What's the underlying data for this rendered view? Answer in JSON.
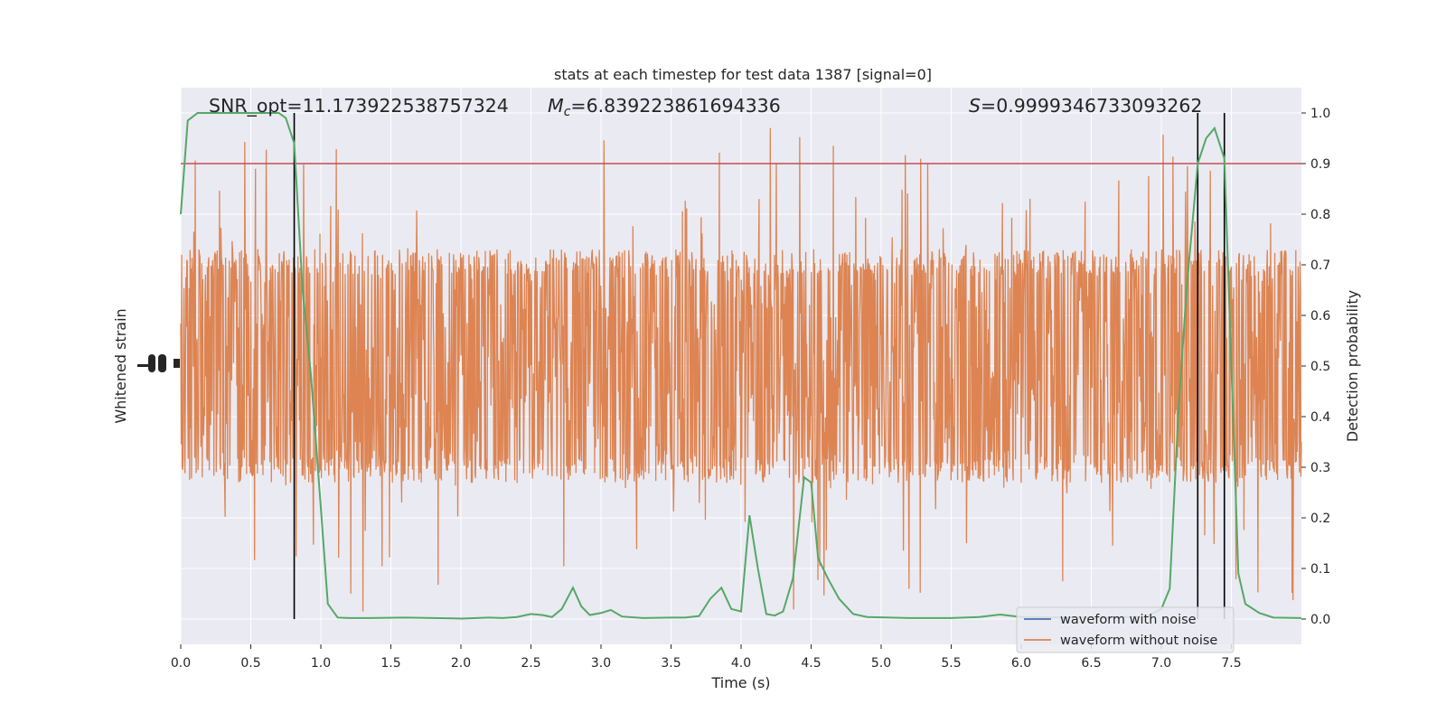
{
  "chart_data": {
    "type": "line",
    "title": "stats at each timestep for test data 1387 [signal=0]",
    "xlabel": "Time (s)",
    "ylabel_left": "Whitened strain",
    "ylabel_right": "Detection probability",
    "xlim": [
      0,
      8
    ],
    "ylim_right": [
      -0.05,
      1.05
    ],
    "x_ticks": [
      "0.0",
      "0.5",
      "1.0",
      "1.5",
      "2.0",
      "2.5",
      "3.0",
      "3.5",
      "4.0",
      "4.5",
      "5.0",
      "5.5",
      "6.0",
      "6.5",
      "7.0",
      "7.5"
    ],
    "y_right_ticks": [
      "0.0",
      "0.1",
      "0.2",
      "0.3",
      "0.4",
      "0.5",
      "0.6",
      "0.7",
      "0.8",
      "0.9",
      "1.0"
    ],
    "grid": true,
    "legend_placement": "lower-right",
    "annotations": {
      "snr_label": "SNR_opt=11.173922538757324",
      "mc_symbol": "M",
      "mc_subscript": "c",
      "mc_value": "=6.839223861694336",
      "s_symbol": "S",
      "s_value": "=0.9999346733093262"
    },
    "threshold": {
      "value": 0.9,
      "color": "#c44e52"
    },
    "vertical_markers_x": [
      0.81,
      7.26,
      7.45
    ],
    "series": [
      {
        "name": "waveform with noise",
        "color": "#4c72b0",
        "values": []
      },
      {
        "name": "waveform without noise",
        "color": "#dd8452",
        "noise_center": 0.5,
        "noise_band": [
          0.3,
          0.7
        ],
        "noise_spike_extent": [
          0.0,
          1.0
        ]
      },
      {
        "color": "#55a868",
        "x": [
          0.0,
          0.05,
          0.12,
          0.25,
          0.4,
          0.55,
          0.7,
          0.75,
          0.81,
          0.87,
          0.93,
          1.0,
          1.05,
          1.12,
          1.2,
          1.35,
          1.6,
          1.8,
          2.0,
          2.2,
          2.3,
          2.4,
          2.5,
          2.58,
          2.65,
          2.72,
          2.8,
          2.86,
          2.92,
          3.0,
          3.07,
          3.15,
          3.3,
          3.5,
          3.6,
          3.7,
          3.78,
          3.86,
          3.93,
          4.0,
          4.06,
          4.12,
          4.18,
          4.24,
          4.3,
          4.37,
          4.45,
          4.5,
          4.55,
          4.62,
          4.7,
          4.8,
          4.9,
          5.2,
          5.5,
          5.7,
          5.85,
          6.0,
          6.3,
          6.6,
          6.9,
          7.0,
          7.06,
          7.12,
          7.18,
          7.26,
          7.32,
          7.38,
          7.45,
          7.5,
          7.55,
          7.6,
          7.7,
          7.8,
          8.0
        ],
        "y": [
          0.8,
          0.985,
          1.0,
          1.0,
          1.0,
          1.0,
          1.0,
          0.99,
          0.94,
          0.65,
          0.48,
          0.22,
          0.03,
          0.003,
          0.002,
          0.002,
          0.003,
          0.002,
          0.001,
          0.003,
          0.002,
          0.004,
          0.01,
          0.008,
          0.004,
          0.02,
          0.062,
          0.025,
          0.008,
          0.012,
          0.018,
          0.005,
          0.002,
          0.003,
          0.003,
          0.006,
          0.04,
          0.062,
          0.02,
          0.015,
          0.205,
          0.1,
          0.01,
          0.007,
          0.015,
          0.08,
          0.28,
          0.27,
          0.12,
          0.08,
          0.04,
          0.01,
          0.004,
          0.002,
          0.002,
          0.004,
          0.009,
          0.004,
          0.003,
          0.003,
          0.005,
          0.02,
          0.06,
          0.4,
          0.65,
          0.9,
          0.95,
          0.97,
          0.91,
          0.5,
          0.09,
          0.03,
          0.012,
          0.003,
          0.002
        ]
      }
    ]
  }
}
